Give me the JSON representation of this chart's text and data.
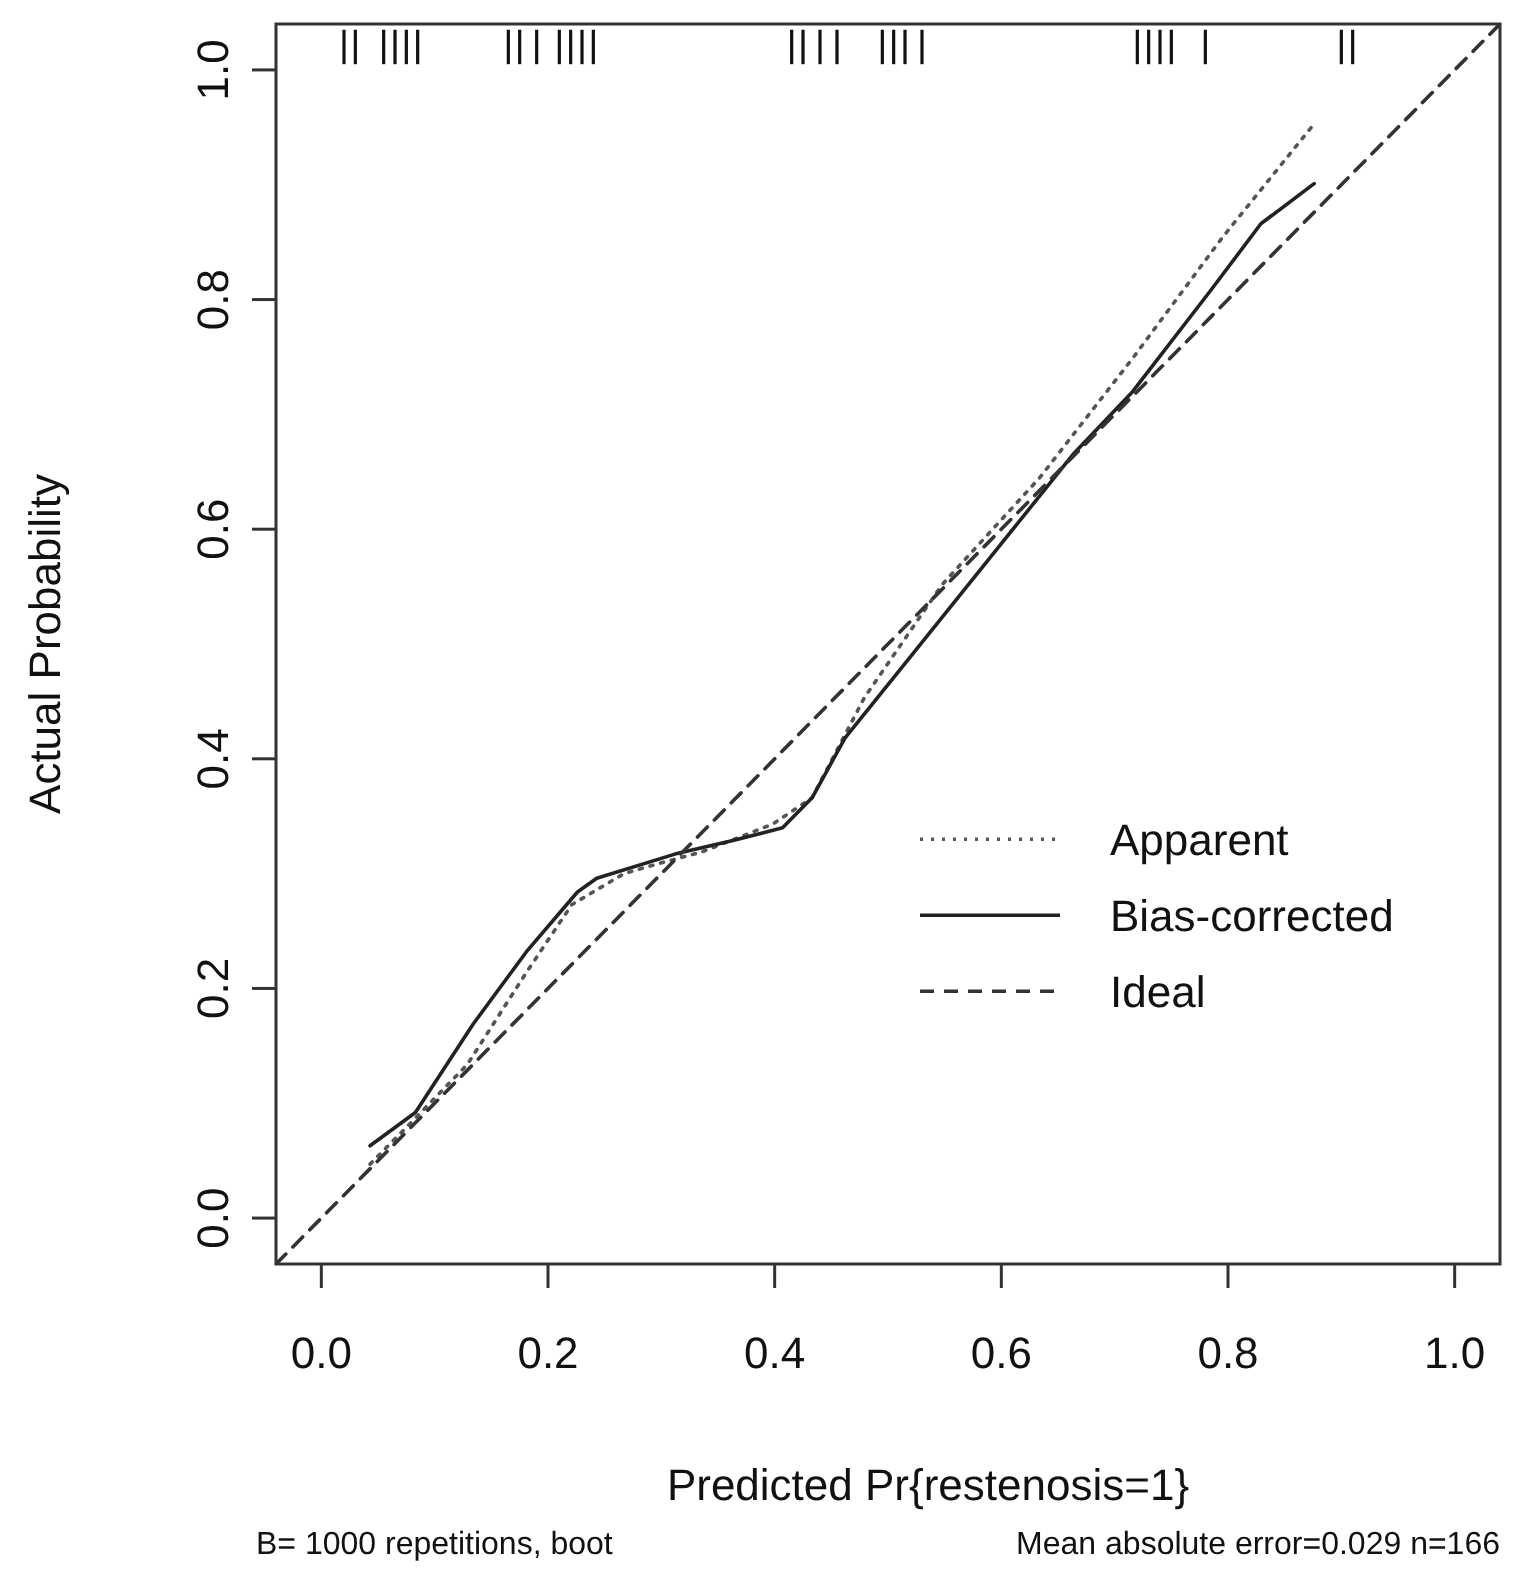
{
  "chart_data": {
    "type": "line",
    "xlabel": "Predicted Pr{restenosis=1}",
    "ylabel": "Actual Probability",
    "xlim": [
      -0.04,
      1.04
    ],
    "ylim": [
      -0.04,
      1.04
    ],
    "xticks": [
      {
        "value": 0,
        "label": "0.0"
      },
      {
        "value": 0.2,
        "label": "0.2"
      },
      {
        "value": 0.4,
        "label": "0.4"
      },
      {
        "value": 0.6,
        "label": "0.6"
      },
      {
        "value": 0.8,
        "label": "0.8"
      },
      {
        "value": 1,
        "label": "1.0"
      }
    ],
    "yticks": [
      {
        "value": 0,
        "label": "0.0"
      },
      {
        "value": 0.2,
        "label": "0.2"
      },
      {
        "value": 0.4,
        "label": "0.4"
      },
      {
        "value": 0.6,
        "label": "0.6"
      },
      {
        "value": 0.8,
        "label": "0.8"
      },
      {
        "value": 1,
        "label": "1.0"
      }
    ],
    "legend": "bottom right",
    "grid": false,
    "series": [
      {
        "name": "Apparent",
        "color": "#555555",
        "line_style": "dotted",
        "x": [
          0.043,
          0.078,
          0.129,
          0.181,
          0.221,
          0.267,
          0.295,
          0.336,
          0.398,
          0.433,
          0.479,
          0.548,
          0.634,
          0.716,
          0.795,
          0.876
        ],
        "values": [
          0.047,
          0.082,
          0.134,
          0.214,
          0.273,
          0.3,
          0.308,
          0.319,
          0.343,
          0.366,
          0.453,
          0.552,
          0.645,
          0.749,
          0.854,
          0.953
        ]
      },
      {
        "name": "Bias-corrected",
        "color": "#222222",
        "line_style": "solid",
        "x": [
          0.043,
          0.083,
          0.134,
          0.181,
          0.226,
          0.243,
          0.312,
          0.364,
          0.407,
          0.433,
          0.462,
          0.519,
          0.664,
          0.716,
          0.784,
          0.829,
          0.876
        ],
        "values": [
          0.063,
          0.092,
          0.169,
          0.232,
          0.284,
          0.296,
          0.317,
          0.329,
          0.34,
          0.366,
          0.418,
          0.488,
          0.666,
          0.72,
          0.807,
          0.866,
          0.901
        ]
      },
      {
        "name": "Ideal",
        "color": "#333333",
        "line_style": "dashed",
        "x": [
          -0.04,
          1.04
        ],
        "values": [
          -0.04,
          1.04
        ]
      },
      {
        "type": "bar",
        "color": "#111111",
        "base": [
          1.005,
          1.005,
          1.005,
          1.005,
          1.005,
          1.005,
          1.005,
          1.005,
          1.005,
          1.005,
          1.005,
          1.005,
          1.005,
          1.005,
          1.005,
          1.005,
          1.005,
          1.005,
          1.005,
          1.005,
          1.005,
          1.005,
          1.005,
          1.005,
          1.005,
          1.005,
          1.005,
          1.005
        ],
        "x": [
          0.02,
          0.03,
          0.055,
          0.065,
          0.075,
          0.085,
          0.165,
          0.175,
          0.19,
          0.21,
          0.22,
          0.23,
          0.24,
          0.415,
          0.425,
          0.44,
          0.455,
          0.495,
          0.505,
          0.515,
          0.53,
          0.72,
          0.73,
          0.74,
          0.75,
          0.78,
          0.9,
          0.91
        ],
        "values": [
          0.03,
          0.03,
          0.03,
          0.03,
          0.03,
          0.03,
          0.03,
          0.03,
          0.03,
          0.03,
          0.03,
          0.03,
          0.03,
          0.03,
          0.03,
          0.03,
          0.03,
          0.03,
          0.03,
          0.03,
          0.03,
          0.03,
          0.03,
          0.03,
          0.03,
          0.03,
          0.03,
          0.03
        ]
      }
    ],
    "annotations": [
      "B= 1000 repetitions, boot",
      "Mean absolute error=0.029 n=166"
    ]
  }
}
